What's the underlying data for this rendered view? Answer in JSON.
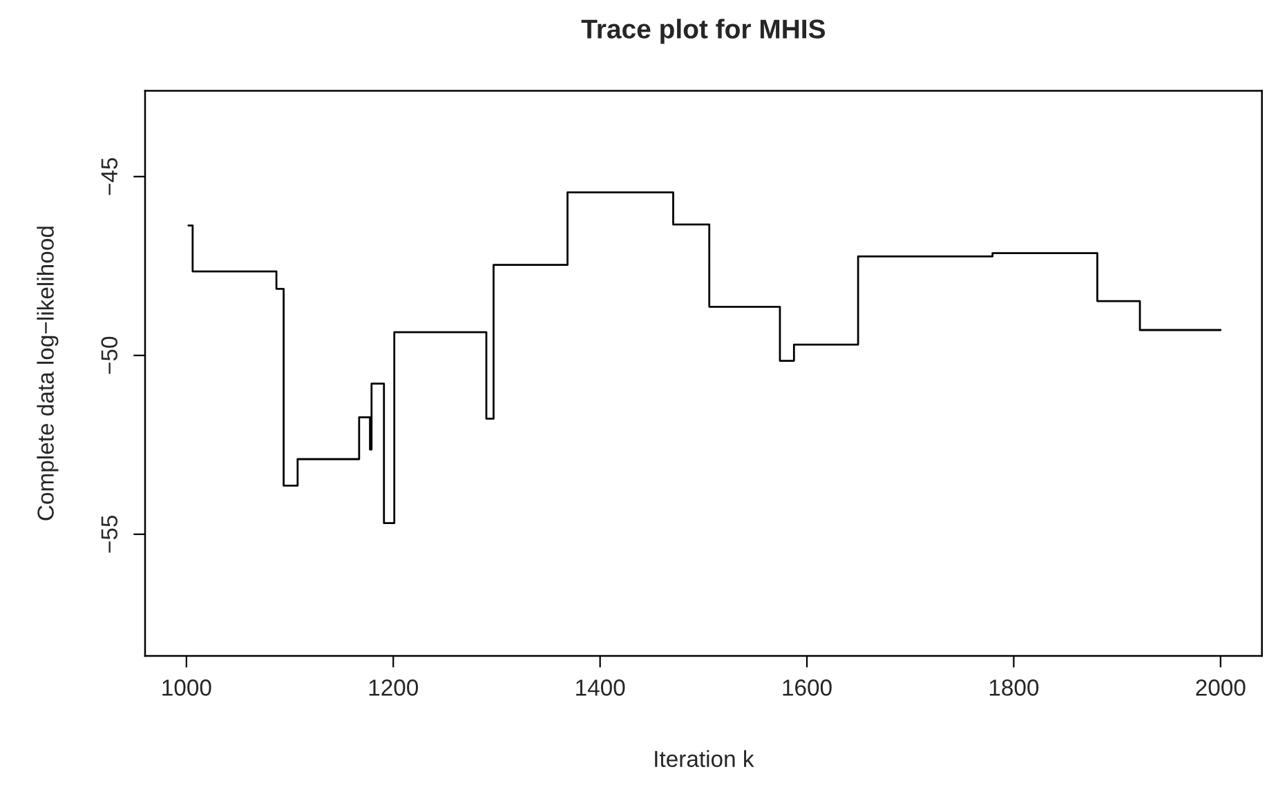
{
  "chart_data": {
    "type": "step",
    "title": "Trace plot for MHIS",
    "xlabel": "Iteration k",
    "ylabel": "Complete data log−likelihood",
    "x": [
      1002,
      1006,
      1087,
      1094,
      1107.5,
      1167,
      1177.5,
      1179,
      1191,
      1201,
      1290,
      1297,
      1368.5,
      1470.7,
      1505.6,
      1573.9,
      1587.5,
      1649.5,
      1779.5,
      1880.8,
      1922,
      2000
    ],
    "series": [
      {
        "color": "#000000",
        "values": [
          -46.37,
          -47.65,
          -48.14,
          -53.64,
          -52.9,
          -51.73,
          -52.63,
          -50.79,
          -54.69,
          -49.35,
          -51.77,
          -47.47,
          -45.44,
          -46.34,
          -48.64,
          -50.15,
          -49.7,
          -47.23,
          -47.14,
          -48.48,
          -49.29,
          -49.29
        ]
      }
    ],
    "xlim": [
      960,
      2040
    ],
    "ylim": [
      -58.4,
      -42.6
    ],
    "xticks": [
      1000,
      1200,
      1400,
      1600,
      1800,
      2000
    ],
    "yticks": [
      {
        "value": -55,
        "label": "−55"
      },
      {
        "value": -50,
        "label": "−50"
      },
      {
        "value": -45,
        "label": "−45"
      }
    ],
    "grid": false,
    "marker": "none",
    "line_style": "solid"
  }
}
